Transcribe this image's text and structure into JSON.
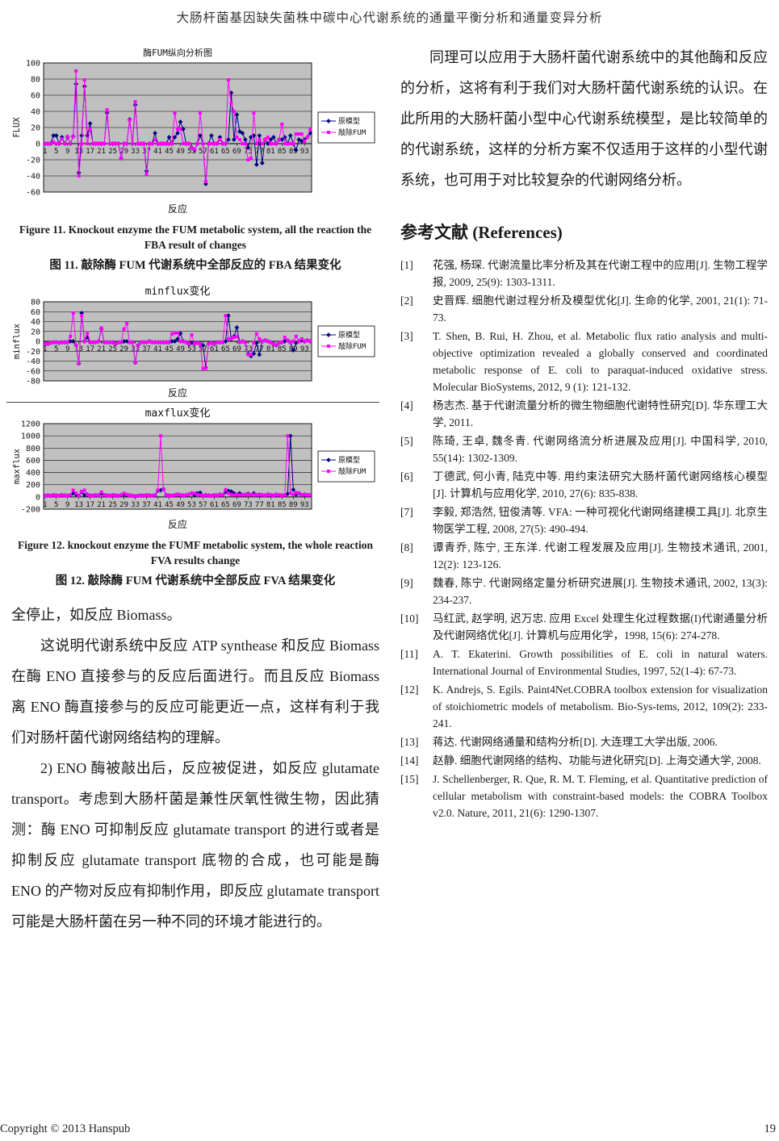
{
  "page": {
    "title": "大肠杆菌基因缺失菌株中碳中心代谢系统的通量平衡分析和通量变异分析",
    "footer_left": "Copyright © 2013 Hanspub",
    "page_number": "19"
  },
  "figures": {
    "fig11_en": "Figure 11. Knockout enzyme the FUM metabolic system, all the reaction the FBA result of changes",
    "fig11_zh": "图 11.  敲除酶 FUM 代谢系统中全部反应的 FBA 结果变化",
    "fig12_en": "Figure 12. knockout enzyme the FUMF metabolic system, the whole reaction FVA results change",
    "fig12_zh": "图 12.  敲除酶 FUM 代谢系统中全部反应 FVA 结果变化"
  },
  "left_column": {
    "paragraphs": [
      {
        "text": "全停止，如反应 Biomass。",
        "indent": false
      },
      {
        "text": "这说明代谢系统中反应 ATP synthease 和反应 Biomass 在酶 ENO 直接参与的反应后面进行。而且反应 Biomass 离 ENO 酶直接参与的反应可能更近一点，这样有利于我们对肠杆菌代谢网络结构的理解。",
        "indent": true
      },
      {
        "text": "2) ENO 酶被敲出后，反应被促进，如反应 glutamate transport。考虑到大肠杆菌是兼性厌氧性微生物，因此猜测：酶 ENO 可抑制反应 glutamate transport 的进行或者是抑制反应 glutamate transport 底物的合成，也可能是酶 ENO 的产物对反应有抑制作用，即反应 glutamate transport 可能是大肠杆菌在另一种不同的环境才能进行的。",
        "indent": true
      }
    ]
  },
  "right_column": {
    "paragraph": "同理可以应用于大肠杆菌代谢系统中的其他酶和反应的分析，这将有利于我们对大肠杆菌代谢系统的认识。在此所用的大肠杆菌小型中心代谢系统模型，是比较简单的的代谢系统，这样的分析方案不仅适用于这样的小型代谢系统，也可用于对比较复杂的代谢网络分析。",
    "references_heading": "参考文献  (References)",
    "references": [
      {
        "label": "[1]",
        "text": "花强, 杨琛. 代谢流量比率分析及其在代谢工程中的应用[J]. 生物工程学报, 2009, 25(9): 1303-1311."
      },
      {
        "label": "[2]",
        "text": "史晋辉. 细胞代谢过程分析及模型优化[J]. 生命的化学, 2001, 21(1): 71-73."
      },
      {
        "label": "[3]",
        "text": "T. Shen, B. Rui, H. Zhou, et al. Metabolic flux ratio analysis and multi-objective optimization revealed a globally conserved and coordinated metabolic response of E. coli to paraquat-induced oxidative stress. Molecular BioSystems, 2012, 9 (1): 121-132."
      },
      {
        "label": "[4]",
        "text": "杨志杰. 基于代谢流量分析的微生物细胞代谢特性研究[D]. 华东理工大学, 2011."
      },
      {
        "label": "[5]",
        "text": "陈琦, 王卓, 魏冬青. 代谢网络流分析进展及应用[J]. 中国科学, 2010, 55(14): 1302-1309."
      },
      {
        "label": "[6]",
        "text": "丁德武, 何小青, 陆克中等. 用约束法研究大肠杆菌代谢网络核心模型[J]. 计算机与应用化学, 2010, 27(6): 835-838."
      },
      {
        "label": "[7]",
        "text": "李毅, 郑浩然, 钮俊清等. VFA: 一种可视化代谢网络建模工具[J]. 北京生物医学工程, 2008, 27(5): 490-494."
      },
      {
        "label": "[8]",
        "text": "谭青乔, 陈宁, 王东洋. 代谢工程发展及应用[J]. 生物技术通讯, 2001, 12(2): 123-126."
      },
      {
        "label": "[9]",
        "text": "魏春, 陈宁. 代谢网络定量分析研究进展[J]. 生物技术通讯, 2002, 13(3): 234-237."
      },
      {
        "label": "[10]",
        "text": "马红武, 赵学明, 迟万忠. 应用 Excel 处理生化过程数据(I)代谢通量分析及代谢网络优化[J]. 计算机与应用化学，1998, 15(6): 274-278."
      },
      {
        "label": "[11]",
        "text": "A. T. Ekaterini. Growth possibilities of E. coli in natural waters. International Journal of Environmental Studies, 1997, 52(1-4): 67-73."
      },
      {
        "label": "[12]",
        "text": "K. Andrejs, S. Egils. Paint4Net.COBRA toolbox extension for visualization of stoichiometric models of metabolism. Bio-Sys-tems, 2012, 109(2): 233-241."
      },
      {
        "label": "[13]",
        "text": "蒋达. 代谢网络通量和结构分析[D]. 大连理工大学出版, 2006."
      },
      {
        "label": "[14]",
        "text": "赵静. 细胞代谢网络的结构、功能与进化研究[D]. 上海交通大学, 2008."
      },
      {
        "label": "[15]",
        "text": "J. Schellenberger, R. Que, R. M. T. Fleming, et al. Quantitative prediction of cellular metabolism with constraint-based models: the COBRA Toolbox v2.0. Nature, 2011, 21(6): 1290-1307."
      }
    ]
  },
  "chart_data": [
    {
      "type": "line",
      "title": "酶FUM纵向分析图",
      "xlabel": "反应",
      "ylabel": "FLUX",
      "ylim": [
        -60,
        100
      ],
      "ystep": 20,
      "x_ticks": [
        1,
        5,
        9,
        13,
        17,
        21,
        25,
        29,
        33,
        37,
        41,
        45,
        49,
        53,
        57,
        61,
        65,
        69,
        73,
        77,
        81,
        85,
        89,
        93
      ],
      "n_points": 95,
      "grid": true,
      "plot_bg": "#c0c0c0",
      "legend_position": "right",
      "series": [
        {
          "name": "原模型",
          "color": "#000080",
          "marker": "diamond",
          "values": [
            0,
            0,
            0,
            10,
            10,
            0,
            8,
            0,
            8,
            0,
            9,
            74,
            -36,
            10,
            71,
            10,
            25,
            0,
            0,
            0,
            0,
            0,
            38,
            0,
            0,
            0,
            0,
            -18,
            0,
            0,
            30,
            0,
            48,
            0,
            0,
            0,
            -34,
            0,
            0,
            13,
            0,
            0,
            0,
            0,
            8,
            0,
            8,
            13,
            27,
            18,
            0,
            0,
            -5,
            -8,
            0,
            10,
            0,
            -50,
            0,
            10,
            0,
            0,
            8,
            0,
            0,
            5,
            63,
            5,
            36,
            15,
            13,
            5,
            -5,
            8,
            10,
            -26,
            10,
            -24,
            5,
            0,
            5,
            8,
            0,
            5,
            5,
            8,
            0,
            10,
            0,
            -8,
            5,
            3,
            5,
            8,
            13
          ]
        },
        {
          "name": "敲除FUM",
          "color": "#ff00ff",
          "marker": "square",
          "values": [
            0,
            0,
            0,
            2,
            0,
            0,
            6,
            0,
            9,
            0,
            9,
            90,
            -40,
            0,
            79,
            0,
            18,
            0,
            0,
            0,
            0,
            0,
            42,
            0,
            0,
            0,
            0,
            -18,
            0,
            0,
            29,
            0,
            52,
            0,
            0,
            0,
            -38,
            0,
            0,
            5,
            0,
            0,
            0,
            0,
            0,
            0,
            38,
            18,
            18,
            0,
            0,
            0,
            -5,
            -7,
            0,
            38,
            0,
            -47,
            0,
            0,
            0,
            0,
            5,
            0,
            0,
            79,
            50,
            40,
            8,
            5,
            0,
            0,
            -20,
            -18,
            38,
            0,
            5,
            0,
            5,
            8,
            0,
            0,
            0,
            5,
            24,
            0,
            0,
            0,
            0,
            12,
            12,
            12,
            3,
            8,
            18
          ]
        }
      ]
    },
    {
      "type": "line",
      "title": "minflux变化",
      "xlabel": "反应",
      "ylabel": "minflux",
      "ylim": [
        -80,
        80
      ],
      "ystep": 20,
      "x_ticks": [
        1,
        5,
        9,
        13,
        17,
        21,
        25,
        29,
        33,
        37,
        41,
        45,
        49,
        53,
        57,
        61,
        65,
        69,
        73,
        77,
        81,
        85,
        89,
        93
      ],
      "n_points": 95,
      "grid": true,
      "plot_bg": "#c0c0c0",
      "legend_position": "right",
      "series": [
        {
          "name": "原模型",
          "color": "#000080",
          "marker": "diamond",
          "values": [
            -5,
            -5,
            -3,
            -2,
            -2,
            -3,
            -2,
            -2,
            -2,
            0,
            0,
            -8,
            -45,
            57,
            0,
            8,
            -2,
            -2,
            -2,
            0,
            25,
            -2,
            -2,
            -2,
            -2,
            -5,
            -2,
            -2,
            0,
            0,
            -2,
            -2,
            -43,
            -8,
            -2,
            -2,
            -2,
            0,
            -2,
            -2,
            -2,
            -2,
            -2,
            -2,
            -2,
            0,
            0,
            5,
            16,
            0,
            -2,
            -5,
            -3,
            -5,
            -3,
            -5,
            -8,
            -53,
            -5,
            -3,
            -5,
            -2,
            -2,
            -2,
            0,
            52,
            5,
            10,
            28,
            -2,
            0,
            -2,
            -25,
            -30,
            -25,
            -3,
            -27,
            0,
            2,
            0,
            -2,
            -5,
            -8,
            -3,
            -2,
            0,
            2,
            -2,
            -18,
            -3,
            0,
            2,
            0,
            2,
            0
          ]
        },
        {
          "name": "敲除FUM",
          "color": "#ff00ff",
          "marker": "square",
          "values": [
            -5,
            -5,
            -3,
            -2,
            -2,
            -3,
            -2,
            -2,
            -2,
            10,
            57,
            -8,
            -45,
            52,
            0,
            17,
            -2,
            -2,
            -2,
            0,
            27,
            -2,
            -2,
            -2,
            -2,
            -5,
            -2,
            -2,
            25,
            36,
            -2,
            -2,
            -43,
            -8,
            -2,
            -2,
            -2,
            0,
            -2,
            -2,
            -2,
            -2,
            -2,
            -2,
            -2,
            15,
            17,
            17,
            0,
            0,
            -2,
            -5,
            13,
            -5,
            -3,
            -5,
            -55,
            -55,
            -5,
            -3,
            -5,
            -2,
            -2,
            -2,
            52,
            5,
            5,
            8,
            10,
            -2,
            0,
            -2,
            -27,
            -27,
            -3,
            15,
            5,
            0,
            2,
            0,
            -2,
            -5,
            -8,
            -3,
            -2,
            8,
            2,
            -2,
            0,
            10,
            0,
            5,
            0,
            2,
            0
          ]
        }
      ]
    },
    {
      "type": "line",
      "title": "maxflux变化",
      "xlabel": "反应",
      "ylabel": "maxflux",
      "ylim": [
        -200,
        1200
      ],
      "ystep": 200,
      "x_ticks": [
        1,
        5,
        9,
        13,
        17,
        21,
        25,
        29,
        33,
        37,
        41,
        45,
        49,
        53,
        57,
        61,
        65,
        69,
        73,
        77,
        81,
        85,
        89,
        93
      ],
      "n_points": 95,
      "grid": true,
      "plot_bg": "#c0c0c0",
      "legend_position": "right",
      "series": [
        {
          "name": "原模型",
          "color": "#000080",
          "marker": "diamond",
          "values": [
            20,
            25,
            20,
            30,
            25,
            20,
            30,
            25,
            20,
            30,
            60,
            40,
            20,
            80,
            30,
            40,
            25,
            20,
            30,
            25,
            60,
            30,
            25,
            20,
            30,
            25,
            20,
            30,
            40,
            30,
            25,
            20,
            10,
            20,
            25,
            20,
            30,
            25,
            20,
            30,
            100,
            110,
            130,
            30,
            25,
            20,
            30,
            40,
            30,
            25,
            30,
            40,
            60,
            30,
            60,
            70,
            20,
            30,
            25,
            20,
            30,
            25,
            40,
            30,
            80,
            100,
            90,
            60,
            40,
            60,
            30,
            40,
            50,
            30,
            60,
            30,
            40,
            30,
            25,
            40,
            30,
            25,
            40,
            30,
            25,
            30,
            50,
            1000,
            120,
            40,
            60,
            30,
            40,
            30,
            30
          ]
        },
        {
          "name": "敲除FUM",
          "color": "#ff00ff",
          "marker": "square",
          "values": [
            20,
            25,
            20,
            30,
            25,
            20,
            30,
            25,
            20,
            30,
            110,
            60,
            20,
            90,
            110,
            40,
            25,
            20,
            30,
            25,
            80,
            30,
            25,
            20,
            30,
            25,
            20,
            30,
            60,
            40,
            25,
            20,
            10,
            20,
            25,
            20,
            30,
            25,
            20,
            30,
            110,
            1000,
            120,
            30,
            25,
            20,
            30,
            40,
            30,
            25,
            30,
            40,
            60,
            60,
            40,
            30,
            20,
            30,
            25,
            20,
            30,
            25,
            40,
            30,
            120,
            60,
            40,
            30,
            40,
            30,
            30,
            40,
            40,
            30,
            40,
            30,
            40,
            30,
            25,
            40,
            30,
            25,
            40,
            30,
            25,
            30,
            1000,
            60,
            40,
            70,
            60,
            30,
            40,
            30,
            30
          ]
        }
      ]
    }
  ]
}
